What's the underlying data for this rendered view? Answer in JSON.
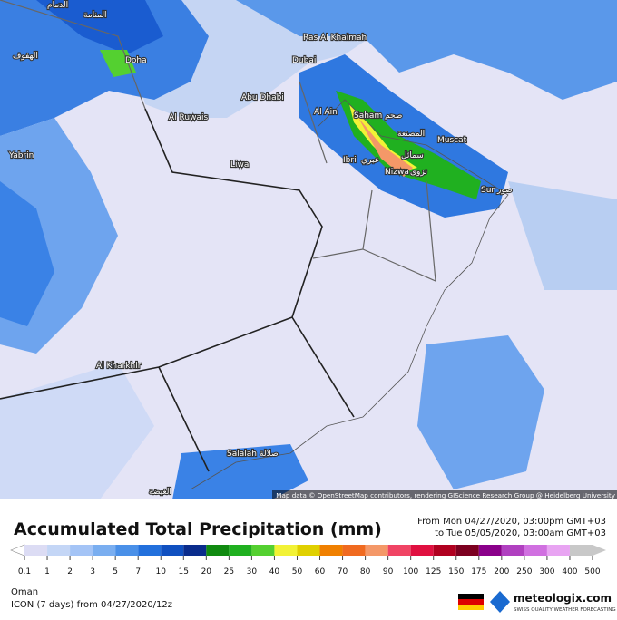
{
  "map": {
    "cities": [
      "الدمام",
      "المنامة",
      "الهفوف",
      "Doha",
      "Ras Al Khaimah",
      "Dubai",
      "Abu Dhabi",
      "Al Ruwais",
      "Al Ain",
      "Saham",
      "صحم",
      "المصنعة",
      "Muscat",
      "Yabrin",
      "Liwa",
      "Ibri",
      "عبري",
      "سمائل",
      "Nizwa",
      "نزوى",
      "Sur",
      "صور",
      "Al Kharkhir",
      "Salalah",
      "صلالة",
      "الغيضة"
    ],
    "attribution": "Map data © OpenStreetMap contributors, rendering GIScience Research Group @ Heidelberg University"
  },
  "header": {
    "title": "Accumulated Total Precipitation (mm)",
    "from": "From Mon 04/27/2020, 03:00pm GMT+03",
    "to": "to Tue 05/05/2020, 03:00am GMT+03"
  },
  "legend": {
    "ticks": [
      0.1,
      1,
      2,
      3,
      5,
      7,
      10,
      15,
      20,
      25,
      30,
      40,
      50,
      60,
      70,
      80,
      90,
      100,
      125,
      150,
      175,
      200,
      250,
      300,
      400,
      500
    ],
    "colors": [
      "#dcdcf4",
      "#c4d6f6",
      "#a4c4f6",
      "#7aaef0",
      "#4a90e8",
      "#2270dc",
      "#1050c0",
      "#0a2c8c",
      "#108a10",
      "#20b020",
      "#54d030",
      "#f2f236",
      "#e0d000",
      "#f08000",
      "#f06a20",
      "#f49868",
      "#f04464",
      "#e01040",
      "#b00020",
      "#7c0020",
      "#8a008a",
      "#b040c0",
      "#d070e0",
      "#e8a4f2",
      "#c8c8c8",
      "#c8c8c8"
    ]
  },
  "footer": {
    "region": "Oman",
    "model": "ICON (7 days) from 04/27/2020/12z",
    "brand": "meteologix.com",
    "tagline": "SWISS QUALITY WEATHER FORECASTING"
  }
}
